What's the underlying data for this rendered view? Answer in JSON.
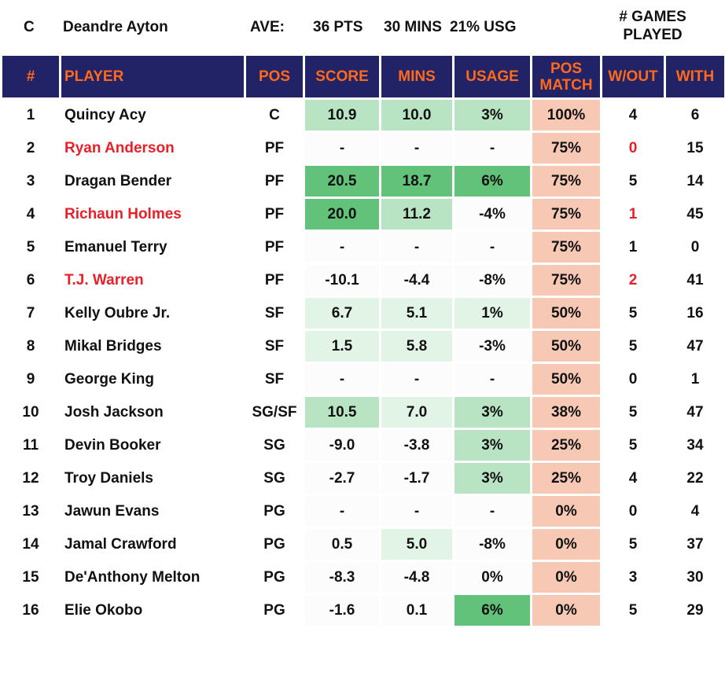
{
  "summary": {
    "position": "C",
    "player": "Deandre Ayton",
    "ave_label": "AVE:",
    "pts": "36 PTS",
    "mins": "30 MINS",
    "usg": "21% USG",
    "games_played_label": "# GAMES PLAYED"
  },
  "headers": {
    "num": "#",
    "player": "PLAYER",
    "pos": "POS",
    "score": "SCORE",
    "mins": "MINS",
    "usage": "USAGE",
    "pos_match": "POS MATCH",
    "without": "W/OUT",
    "with": "WITH"
  },
  "colors": {
    "header_bg": "#222266",
    "header_text": "#ff6a1a",
    "highlight_red": "#e8202a",
    "match_bg": "#f7c9b4",
    "green_scale": [
      "#fbfcfb",
      "#e2f4e6",
      "#b8e4c3",
      "#63c27a"
    ]
  },
  "rows": [
    {
      "num": "1",
      "player": "Quincy Acy",
      "pos": "C",
      "score": "10.9",
      "mins": "10.0",
      "usage": "3%",
      "match": "100%",
      "without": "4",
      "with": "6",
      "highlight": false,
      "score_level": 2,
      "mins_level": 2,
      "usage_level": 2
    },
    {
      "num": "2",
      "player": "Ryan Anderson",
      "pos": "PF",
      "score": "-",
      "mins": "-",
      "usage": "-",
      "match": "75%",
      "without": "0",
      "with": "15",
      "highlight": true,
      "score_level": 0,
      "mins_level": 0,
      "usage_level": 0
    },
    {
      "num": "3",
      "player": "Dragan Bender",
      "pos": "PF",
      "score": "20.5",
      "mins": "18.7",
      "usage": "6%",
      "match": "75%",
      "without": "5",
      "with": "14",
      "highlight": false,
      "score_level": 3,
      "mins_level": 3,
      "usage_level": 3
    },
    {
      "num": "4",
      "player": "Richaun Holmes",
      "pos": "PF",
      "score": "20.0",
      "mins": "11.2",
      "usage": "-4%",
      "match": "75%",
      "without": "1",
      "with": "45",
      "highlight": true,
      "score_level": 3,
      "mins_level": 2,
      "usage_level": 0
    },
    {
      "num": "5",
      "player": "Emanuel Terry",
      "pos": "PF",
      "score": "-",
      "mins": "-",
      "usage": "-",
      "match": "75%",
      "without": "1",
      "with": "0",
      "highlight": false,
      "score_level": 0,
      "mins_level": 0,
      "usage_level": 0
    },
    {
      "num": "6",
      "player": "T.J. Warren",
      "pos": "PF",
      "score": "-10.1",
      "mins": "-4.4",
      "usage": "-8%",
      "match": "75%",
      "without": "2",
      "with": "41",
      "highlight": true,
      "score_level": 0,
      "mins_level": 0,
      "usage_level": 0
    },
    {
      "num": "7",
      "player": "Kelly Oubre Jr.",
      "pos": "SF",
      "score": "6.7",
      "mins": "5.1",
      "usage": "1%",
      "match": "50%",
      "without": "5",
      "with": "16",
      "highlight": false,
      "score_level": 1,
      "mins_level": 1,
      "usage_level": 1
    },
    {
      "num": "8",
      "player": "Mikal Bridges",
      "pos": "SF",
      "score": "1.5",
      "mins": "5.8",
      "usage": "-3%",
      "match": "50%",
      "without": "5",
      "with": "47",
      "highlight": false,
      "score_level": 1,
      "mins_level": 1,
      "usage_level": 0
    },
    {
      "num": "9",
      "player": "George King",
      "pos": "SF",
      "score": "-",
      "mins": "-",
      "usage": "-",
      "match": "50%",
      "without": "0",
      "with": "1",
      "highlight": false,
      "score_level": 0,
      "mins_level": 0,
      "usage_level": 0
    },
    {
      "num": "10",
      "player": "Josh Jackson",
      "pos": "SG/SF",
      "score": "10.5",
      "mins": "7.0",
      "usage": "3%",
      "match": "38%",
      "without": "5",
      "with": "47",
      "highlight": false,
      "score_level": 2,
      "mins_level": 1,
      "usage_level": 2
    },
    {
      "num": "11",
      "player": "Devin Booker",
      "pos": "SG",
      "score": "-9.0",
      "mins": "-3.8",
      "usage": "3%",
      "match": "25%",
      "without": "5",
      "with": "34",
      "highlight": false,
      "score_level": 0,
      "mins_level": 0,
      "usage_level": 2
    },
    {
      "num": "12",
      "player": "Troy Daniels",
      "pos": "SG",
      "score": "-2.7",
      "mins": "-1.7",
      "usage": "3%",
      "match": "25%",
      "without": "4",
      "with": "22",
      "highlight": false,
      "score_level": 0,
      "mins_level": 0,
      "usage_level": 2
    },
    {
      "num": "13",
      "player": "Jawun Evans",
      "pos": "PG",
      "score": "-",
      "mins": "-",
      "usage": "-",
      "match": "0%",
      "without": "0",
      "with": "4",
      "highlight": false,
      "score_level": 0,
      "mins_level": 0,
      "usage_level": 0
    },
    {
      "num": "14",
      "player": "Jamal Crawford",
      "pos": "PG",
      "score": "0.5",
      "mins": "5.0",
      "usage": "-8%",
      "match": "0%",
      "without": "5",
      "with": "37",
      "highlight": false,
      "score_level": 0,
      "mins_level": 1,
      "usage_level": 0
    },
    {
      "num": "15",
      "player": "De'Anthony Melton",
      "pos": "PG",
      "score": "-8.3",
      "mins": "-4.8",
      "usage": "0%",
      "match": "0%",
      "without": "3",
      "with": "30",
      "highlight": false,
      "score_level": 0,
      "mins_level": 0,
      "usage_level": 0
    },
    {
      "num": "16",
      "player": "Elie Okobo",
      "pos": "PG",
      "score": "-1.6",
      "mins": "0.1",
      "usage": "6%",
      "match": "0%",
      "without": "5",
      "with": "29",
      "highlight": false,
      "score_level": 0,
      "mins_level": 0,
      "usage_level": 3
    }
  ]
}
